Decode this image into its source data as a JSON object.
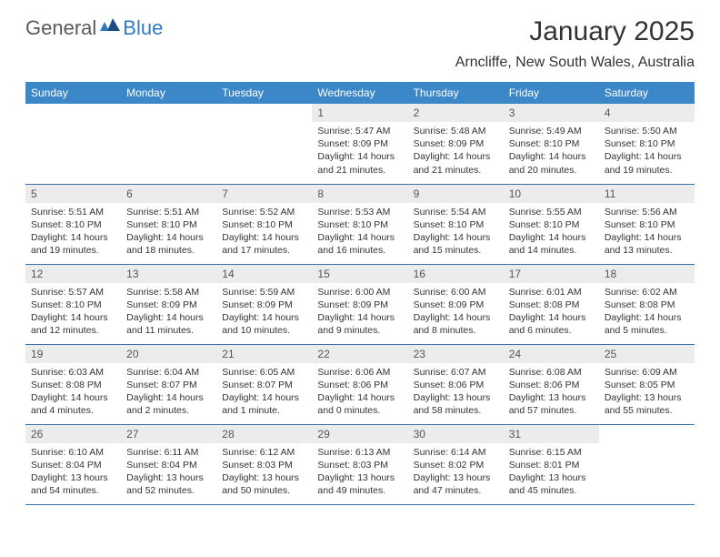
{
  "logo": {
    "text1": "General",
    "text2": "Blue"
  },
  "title": "January 2025",
  "location": "Arncliffe, New South Wales, Australia",
  "colors": {
    "header_bg": "#3b87c8",
    "header_text": "#ffffff",
    "daynum_bg": "#ececec",
    "border": "#3b6fa0",
    "logo_gray": "#5a5a5a",
    "logo_blue": "#2f7bbf"
  },
  "weekdays": [
    "Sunday",
    "Monday",
    "Tuesday",
    "Wednesday",
    "Thursday",
    "Friday",
    "Saturday"
  ],
  "weeks": [
    [
      {
        "n": "",
        "l1": "",
        "l2": "",
        "l3": "",
        "l4": ""
      },
      {
        "n": "",
        "l1": "",
        "l2": "",
        "l3": "",
        "l4": ""
      },
      {
        "n": "",
        "l1": "",
        "l2": "",
        "l3": "",
        "l4": ""
      },
      {
        "n": "1",
        "l1": "Sunrise: 5:47 AM",
        "l2": "Sunset: 8:09 PM",
        "l3": "Daylight: 14 hours",
        "l4": "and 21 minutes."
      },
      {
        "n": "2",
        "l1": "Sunrise: 5:48 AM",
        "l2": "Sunset: 8:09 PM",
        "l3": "Daylight: 14 hours",
        "l4": "and 21 minutes."
      },
      {
        "n": "3",
        "l1": "Sunrise: 5:49 AM",
        "l2": "Sunset: 8:10 PM",
        "l3": "Daylight: 14 hours",
        "l4": "and 20 minutes."
      },
      {
        "n": "4",
        "l1": "Sunrise: 5:50 AM",
        "l2": "Sunset: 8:10 PM",
        "l3": "Daylight: 14 hours",
        "l4": "and 19 minutes."
      }
    ],
    [
      {
        "n": "5",
        "l1": "Sunrise: 5:51 AM",
        "l2": "Sunset: 8:10 PM",
        "l3": "Daylight: 14 hours",
        "l4": "and 19 minutes."
      },
      {
        "n": "6",
        "l1": "Sunrise: 5:51 AM",
        "l2": "Sunset: 8:10 PM",
        "l3": "Daylight: 14 hours",
        "l4": "and 18 minutes."
      },
      {
        "n": "7",
        "l1": "Sunrise: 5:52 AM",
        "l2": "Sunset: 8:10 PM",
        "l3": "Daylight: 14 hours",
        "l4": "and 17 minutes."
      },
      {
        "n": "8",
        "l1": "Sunrise: 5:53 AM",
        "l2": "Sunset: 8:10 PM",
        "l3": "Daylight: 14 hours",
        "l4": "and 16 minutes."
      },
      {
        "n": "9",
        "l1": "Sunrise: 5:54 AM",
        "l2": "Sunset: 8:10 PM",
        "l3": "Daylight: 14 hours",
        "l4": "and 15 minutes."
      },
      {
        "n": "10",
        "l1": "Sunrise: 5:55 AM",
        "l2": "Sunset: 8:10 PM",
        "l3": "Daylight: 14 hours",
        "l4": "and 14 minutes."
      },
      {
        "n": "11",
        "l1": "Sunrise: 5:56 AM",
        "l2": "Sunset: 8:10 PM",
        "l3": "Daylight: 14 hours",
        "l4": "and 13 minutes."
      }
    ],
    [
      {
        "n": "12",
        "l1": "Sunrise: 5:57 AM",
        "l2": "Sunset: 8:10 PM",
        "l3": "Daylight: 14 hours",
        "l4": "and 12 minutes."
      },
      {
        "n": "13",
        "l1": "Sunrise: 5:58 AM",
        "l2": "Sunset: 8:09 PM",
        "l3": "Daylight: 14 hours",
        "l4": "and 11 minutes."
      },
      {
        "n": "14",
        "l1": "Sunrise: 5:59 AM",
        "l2": "Sunset: 8:09 PM",
        "l3": "Daylight: 14 hours",
        "l4": "and 10 minutes."
      },
      {
        "n": "15",
        "l1": "Sunrise: 6:00 AM",
        "l2": "Sunset: 8:09 PM",
        "l3": "Daylight: 14 hours",
        "l4": "and 9 minutes."
      },
      {
        "n": "16",
        "l1": "Sunrise: 6:00 AM",
        "l2": "Sunset: 8:09 PM",
        "l3": "Daylight: 14 hours",
        "l4": "and 8 minutes."
      },
      {
        "n": "17",
        "l1": "Sunrise: 6:01 AM",
        "l2": "Sunset: 8:08 PM",
        "l3": "Daylight: 14 hours",
        "l4": "and 6 minutes."
      },
      {
        "n": "18",
        "l1": "Sunrise: 6:02 AM",
        "l2": "Sunset: 8:08 PM",
        "l3": "Daylight: 14 hours",
        "l4": "and 5 minutes."
      }
    ],
    [
      {
        "n": "19",
        "l1": "Sunrise: 6:03 AM",
        "l2": "Sunset: 8:08 PM",
        "l3": "Daylight: 14 hours",
        "l4": "and 4 minutes."
      },
      {
        "n": "20",
        "l1": "Sunrise: 6:04 AM",
        "l2": "Sunset: 8:07 PM",
        "l3": "Daylight: 14 hours",
        "l4": "and 2 minutes."
      },
      {
        "n": "21",
        "l1": "Sunrise: 6:05 AM",
        "l2": "Sunset: 8:07 PM",
        "l3": "Daylight: 14 hours",
        "l4": "and 1 minute."
      },
      {
        "n": "22",
        "l1": "Sunrise: 6:06 AM",
        "l2": "Sunset: 8:06 PM",
        "l3": "Daylight: 14 hours",
        "l4": "and 0 minutes."
      },
      {
        "n": "23",
        "l1": "Sunrise: 6:07 AM",
        "l2": "Sunset: 8:06 PM",
        "l3": "Daylight: 13 hours",
        "l4": "and 58 minutes."
      },
      {
        "n": "24",
        "l1": "Sunrise: 6:08 AM",
        "l2": "Sunset: 8:06 PM",
        "l3": "Daylight: 13 hours",
        "l4": "and 57 minutes."
      },
      {
        "n": "25",
        "l1": "Sunrise: 6:09 AM",
        "l2": "Sunset: 8:05 PM",
        "l3": "Daylight: 13 hours",
        "l4": "and 55 minutes."
      }
    ],
    [
      {
        "n": "26",
        "l1": "Sunrise: 6:10 AM",
        "l2": "Sunset: 8:04 PM",
        "l3": "Daylight: 13 hours",
        "l4": "and 54 minutes."
      },
      {
        "n": "27",
        "l1": "Sunrise: 6:11 AM",
        "l2": "Sunset: 8:04 PM",
        "l3": "Daylight: 13 hours",
        "l4": "and 52 minutes."
      },
      {
        "n": "28",
        "l1": "Sunrise: 6:12 AM",
        "l2": "Sunset: 8:03 PM",
        "l3": "Daylight: 13 hours",
        "l4": "and 50 minutes."
      },
      {
        "n": "29",
        "l1": "Sunrise: 6:13 AM",
        "l2": "Sunset: 8:03 PM",
        "l3": "Daylight: 13 hours",
        "l4": "and 49 minutes."
      },
      {
        "n": "30",
        "l1": "Sunrise: 6:14 AM",
        "l2": "Sunset: 8:02 PM",
        "l3": "Daylight: 13 hours",
        "l4": "and 47 minutes."
      },
      {
        "n": "31",
        "l1": "Sunrise: 6:15 AM",
        "l2": "Sunset: 8:01 PM",
        "l3": "Daylight: 13 hours",
        "l4": "and 45 minutes."
      },
      {
        "n": "",
        "l1": "",
        "l2": "",
        "l3": "",
        "l4": ""
      }
    ]
  ]
}
